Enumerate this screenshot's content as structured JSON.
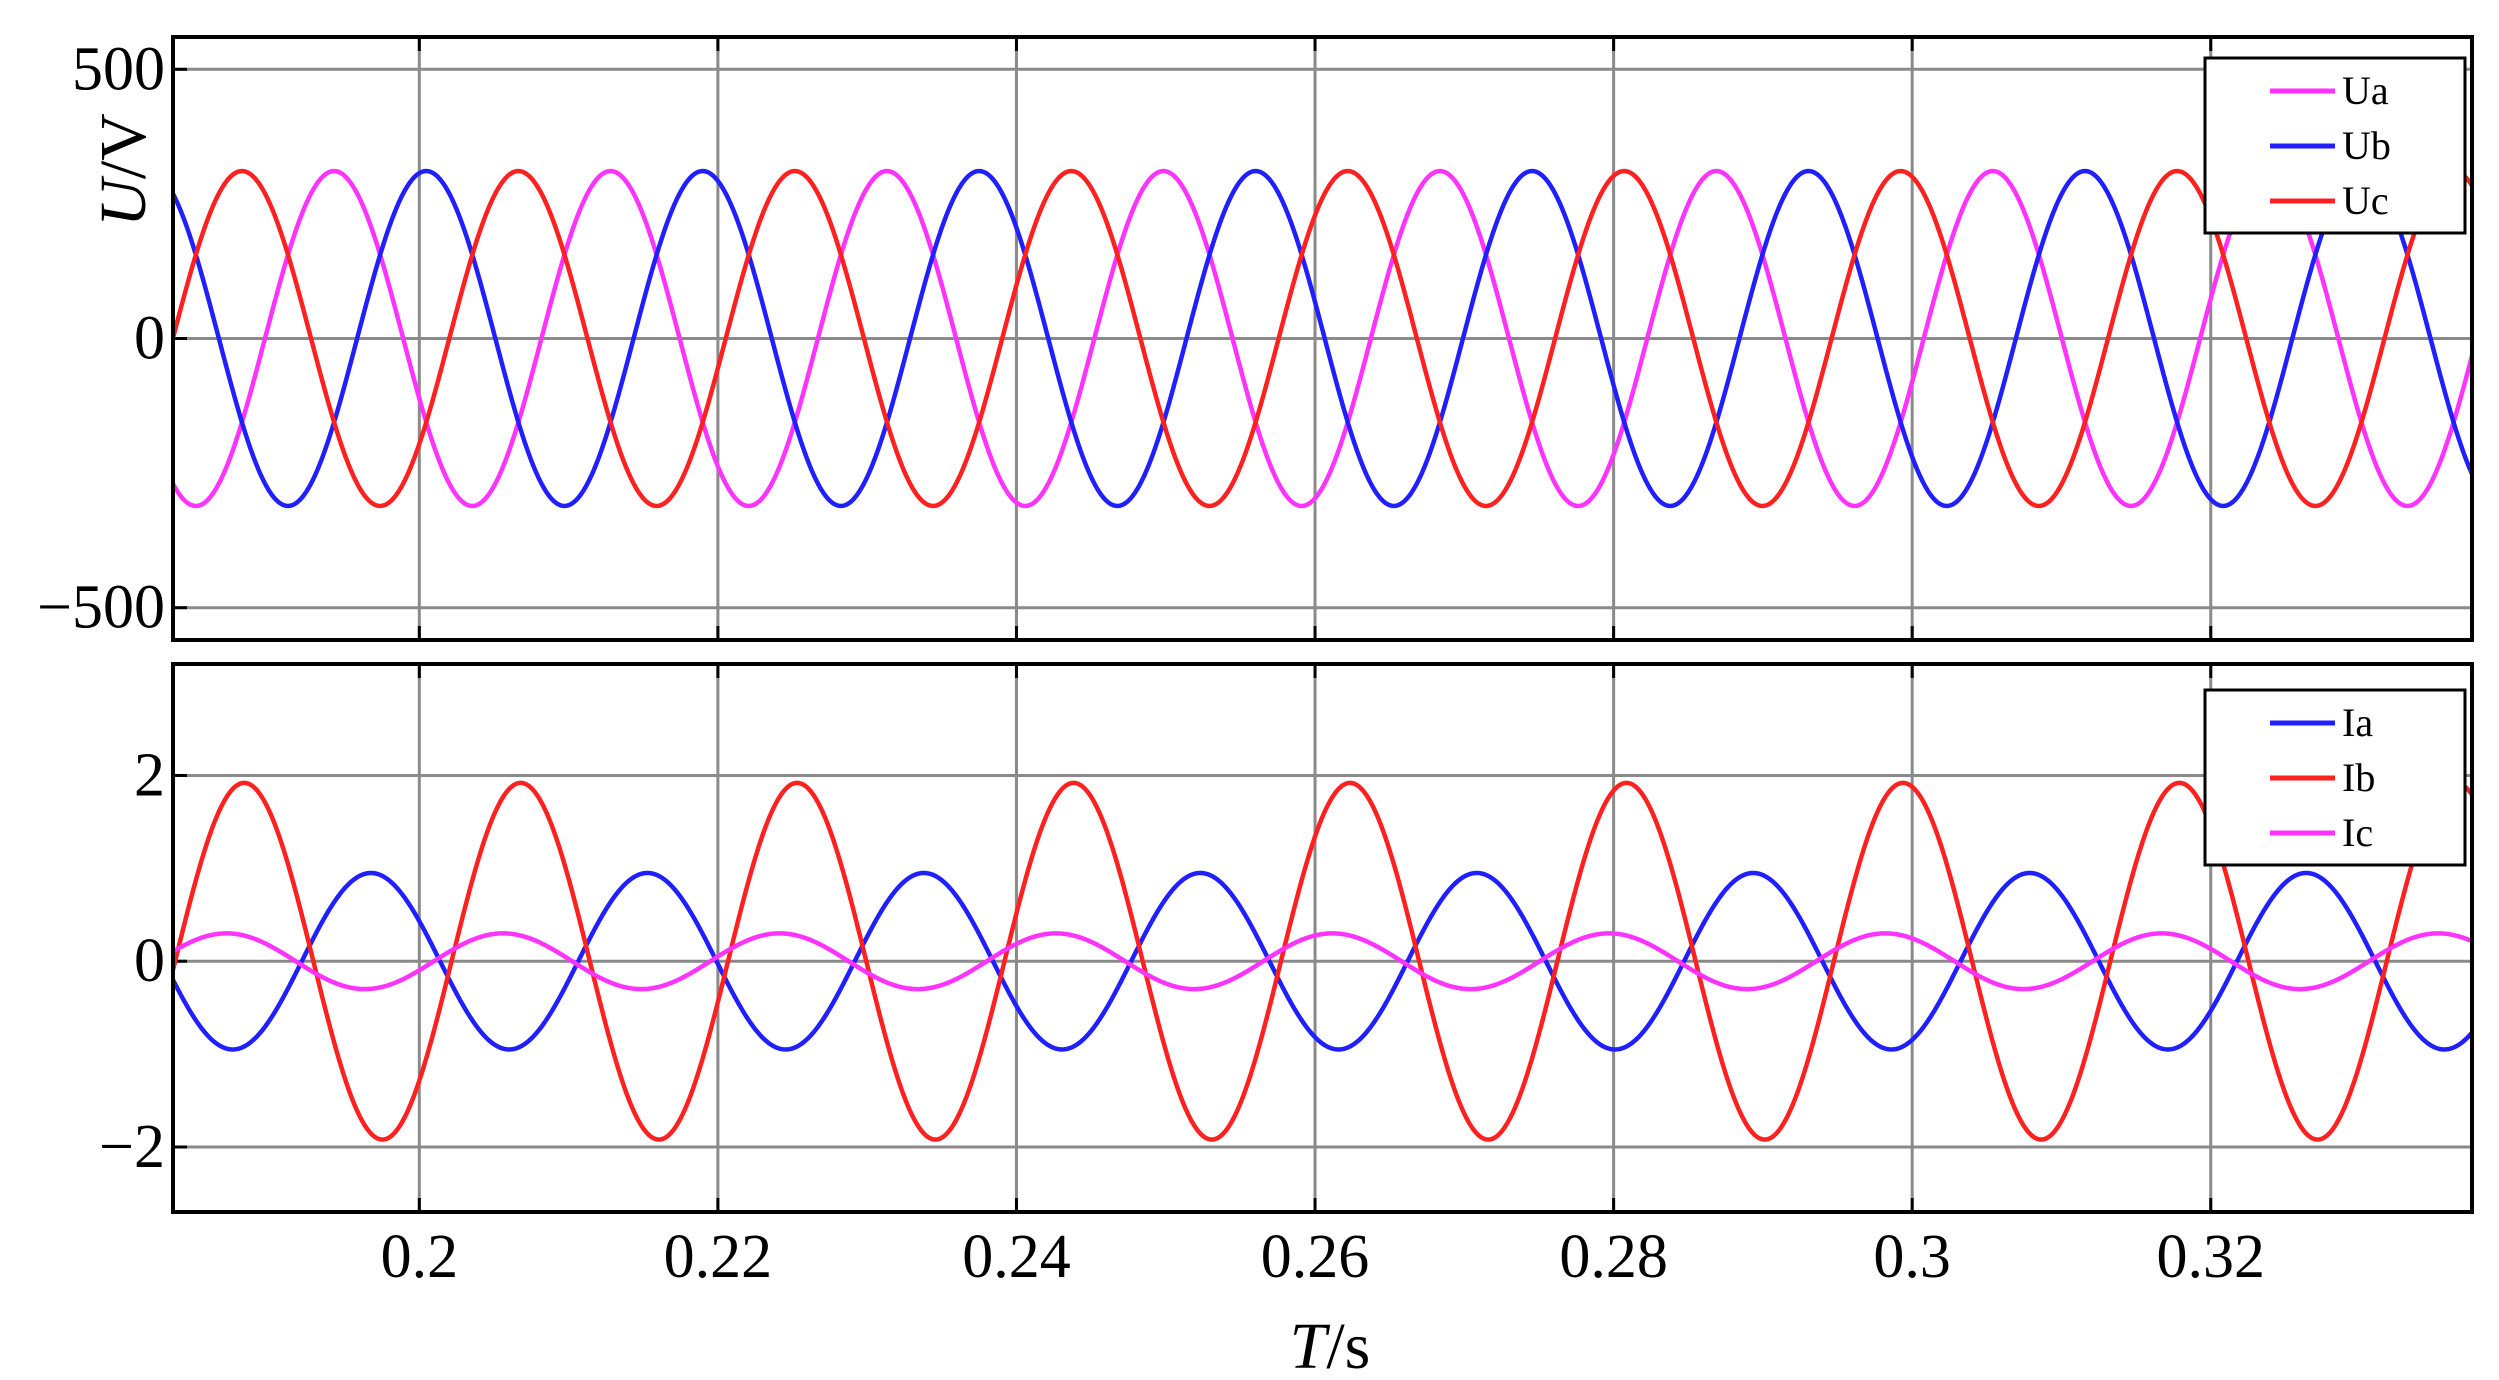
{
  "x_axis": {
    "label_var": "T",
    "label_unit": "/s",
    "range": [
      0.1835,
      0.3375
    ],
    "ticks": [
      0.2,
      0.22,
      0.24,
      0.26,
      0.28,
      0.3,
      0.32
    ],
    "tick_labels": [
      "0.2",
      "0.22",
      "0.24",
      "0.26",
      "0.28",
      "0.3",
      "0.32"
    ]
  },
  "chart_data": [
    {
      "type": "line",
      "panel": "top",
      "ylabel_var": "U",
      "ylabel_unit": "/V",
      "ylim": [
        -560,
        560
      ],
      "yticks": [
        500,
        0,
        -500
      ],
      "ytick_labels": [
        "500",
        "0",
        "−500"
      ],
      "grid": true,
      "legend_position": "top-right",
      "series": [
        {
          "name": "Ua",
          "color": "#ff33ff",
          "amplitude": 311,
          "frequency_hz": 54,
          "phase_deg": -87
        },
        {
          "name": "Ub",
          "color": "#1f1fff",
          "amplitude": 311,
          "frequency_hz": 54,
          "phase_deg": 153
        },
        {
          "name": "Uc",
          "color": "#ff2020",
          "amplitude": 311,
          "frequency_hz": 54,
          "phase_deg": 33
        }
      ]
    },
    {
      "type": "line",
      "panel": "bottom",
      "ylim": [
        -2.7,
        3.2
      ],
      "yticks": [
        2,
        0,
        -2
      ],
      "ytick_labels": [
        "2",
        "0",
        "−2"
      ],
      "grid": true,
      "legend_position": "top-right",
      "series": [
        {
          "name": "Ia",
          "color": "#1f1fff",
          "amplitude": 0.95,
          "frequency_hz": 54,
          "phase_deg": -135
        },
        {
          "name": "Ib",
          "color": "#ff2020",
          "amplitude": 1.92,
          "frequency_hz": 54,
          "phase_deg": 30
        },
        {
          "name": "Ic",
          "color": "#ff33ff",
          "amplitude": 0.3,
          "frequency_hz": 54,
          "phase_deg": 53
        }
      ]
    }
  ]
}
